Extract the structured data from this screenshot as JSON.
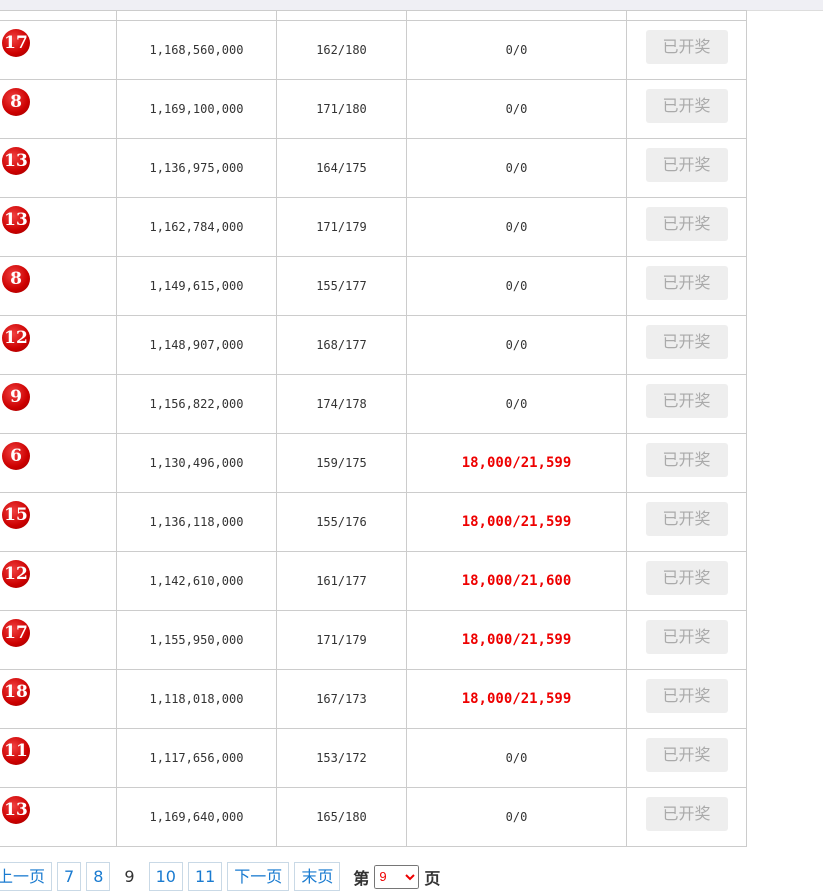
{
  "rows": [
    {
      "ball": "17",
      "amount": "1,168,560,000",
      "ratio": "162/180",
      "prize": "0/0",
      "highlight": false,
      "status": "已开奖"
    },
    {
      "ball": "8",
      "amount": "1,169,100,000",
      "ratio": "171/180",
      "prize": "0/0",
      "highlight": false,
      "status": "已开奖"
    },
    {
      "ball": "13",
      "amount": "1,136,975,000",
      "ratio": "164/175",
      "prize": "0/0",
      "highlight": false,
      "status": "已开奖"
    },
    {
      "ball": "13",
      "amount": "1,162,784,000",
      "ratio": "171/179",
      "prize": "0/0",
      "highlight": false,
      "status": "已开奖"
    },
    {
      "ball": "8",
      "amount": "1,149,615,000",
      "ratio": "155/177",
      "prize": "0/0",
      "highlight": false,
      "status": "已开奖"
    },
    {
      "ball": "12",
      "amount": "1,148,907,000",
      "ratio": "168/177",
      "prize": "0/0",
      "highlight": false,
      "status": "已开奖"
    },
    {
      "ball": "9",
      "amount": "1,156,822,000",
      "ratio": "174/178",
      "prize": "0/0",
      "highlight": false,
      "status": "已开奖"
    },
    {
      "ball": "6",
      "amount": "1,130,496,000",
      "ratio": "159/175",
      "prize": "18,000/21,599",
      "highlight": true,
      "status": "已开奖"
    },
    {
      "ball": "15",
      "amount": "1,136,118,000",
      "ratio": "155/176",
      "prize": "18,000/21,599",
      "highlight": true,
      "status": "已开奖"
    },
    {
      "ball": "12",
      "amount": "1,142,610,000",
      "ratio": "161/177",
      "prize": "18,000/21,600",
      "highlight": true,
      "status": "已开奖"
    },
    {
      "ball": "17",
      "amount": "1,155,950,000",
      "ratio": "171/179",
      "prize": "18,000/21,599",
      "highlight": true,
      "status": "已开奖"
    },
    {
      "ball": "18",
      "amount": "1,118,018,000",
      "ratio": "167/173",
      "prize": "18,000/21,599",
      "highlight": true,
      "status": "已开奖"
    },
    {
      "ball": "11",
      "amount": "1,117,656,000",
      "ratio": "153/172",
      "prize": "0/0",
      "highlight": false,
      "status": "已开奖"
    },
    {
      "ball": "13",
      "amount": "1,169,640,000",
      "ratio": "165/180",
      "prize": "0/0",
      "highlight": false,
      "status": "已开奖"
    }
  ],
  "pager": {
    "prev": "上一页",
    "pages": [
      "7",
      "8"
    ],
    "current": "9",
    "next_pages": [
      "10",
      "11"
    ],
    "next": "下一页",
    "last": "末页",
    "label_before": "第",
    "select_value": "9",
    "label_after": "页"
  },
  "colors": {
    "ball": "#cc0000",
    "highlight": "#ee0000",
    "link": "#1a7bd0"
  }
}
